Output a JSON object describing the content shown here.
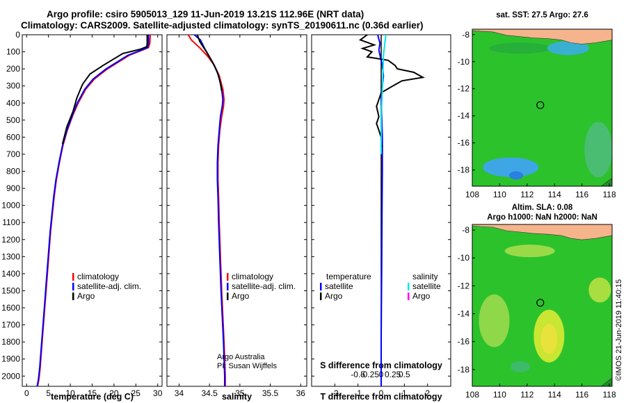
{
  "figure": {
    "title_line1": "Argo profile: csiro 5905013_129 11-Jun-2019 13.21S 112.96E (NRT data)",
    "title_line2": "Climatology: CARS2009. Satellite-adjusted climatology: synTS_20190611.nc (0.36d earlier)",
    "footer_vertical": "©IMOS 21-Jun-2019 11:40:15"
  },
  "colors": {
    "climatology": "#ff0000",
    "satellite": "#0000ff",
    "argo": "#000000",
    "sal_satellite": "#00e5ee",
    "sal_argo": "#ff00ff",
    "map_land": "#f5b48c",
    "map_ocean_green": "#2cc22c",
    "map_ocean_blue": "#3fa6e6",
    "map_ocean_yellow": "#c8e632"
  },
  "chart_data": [
    {
      "id": "temperature",
      "type": "line",
      "xlabel": "temperature (deg C)",
      "ylabel": "",
      "xlim": [
        -1,
        31
      ],
      "ylim": [
        2060,
        0
      ],
      "xticks": [
        0,
        5,
        10,
        15,
        20,
        25,
        30
      ],
      "yticks": [
        0,
        100,
        200,
        300,
        400,
        500,
        600,
        700,
        800,
        900,
        1000,
        1100,
        1200,
        1300,
        1400,
        1500,
        1600,
        1700,
        1800,
        1900,
        2000
      ],
      "legend": [
        "climatology",
        "satellite-adj. clim.",
        "Argo"
      ],
      "series": [
        {
          "name": "climatology",
          "color": "#ff0000",
          "x": [
            28.3,
            28.2,
            27.9,
            26.5,
            23.5,
            18.5,
            15.5,
            13.5,
            11.8,
            10.6,
            9.3,
            8.3,
            7.5,
            6.8,
            6.3,
            5.9,
            5.5,
            5.2,
            4.9,
            4.6,
            4.3,
            4.0,
            3.7,
            3.4,
            3.1,
            2.8,
            2.5
          ],
          "y": [
            0,
            50,
            75,
            90,
            120,
            200,
            260,
            320,
            400,
            470,
            560,
            650,
            750,
            850,
            950,
            1050,
            1150,
            1250,
            1350,
            1450,
            1550,
            1650,
            1750,
            1850,
            1950,
            2020,
            2060
          ]
        },
        {
          "name": "satellite-adj. clim.",
          "color": "#0000ff",
          "x": [
            27.9,
            27.9,
            27.7,
            26.3,
            23.2,
            18.2,
            15.2,
            13.3,
            11.6,
            10.5,
            9.2,
            8.2,
            7.4,
            6.7,
            6.2,
            5.8,
            5.4,
            5.1,
            4.8,
            4.5,
            4.2,
            3.9,
            3.6,
            3.3,
            3.0,
            2.7,
            2.4
          ],
          "y": [
            0,
            50,
            75,
            90,
            120,
            200,
            260,
            320,
            400,
            470,
            560,
            650,
            750,
            850,
            950,
            1050,
            1150,
            1250,
            1350,
            1450,
            1550,
            1650,
            1750,
            1850,
            1950,
            2020,
            2060
          ]
        },
        {
          "name": "Argo",
          "color": "#000000",
          "x": [
            27.6,
            27.6,
            27.5,
            26.0,
            22.0,
            17.5,
            14.5,
            12.8,
            11.5,
            10.6,
            9.2,
            8.2
          ],
          "y": [
            0,
            50,
            70,
            85,
            110,
            180,
            230,
            290,
            370,
            450,
            540,
            640
          ]
        }
      ]
    },
    {
      "id": "salinity",
      "type": "line",
      "xlabel": "salinity",
      "ylabel": "",
      "xlim": [
        33.8,
        36.1
      ],
      "ylim": [
        2060,
        0
      ],
      "xticks": [
        34,
        34.5,
        35,
        35.5,
        36
      ],
      "legend": [
        "climatology",
        "satellite-adj. clim.",
        "Argo"
      ],
      "annotation_line1": "Argo Australia",
      "annotation_line2": "PI: Susan Wijffels",
      "series": [
        {
          "name": "climatology",
          "color": "#ff0000",
          "x": [
            34.15,
            34.2,
            34.35,
            34.48,
            34.58,
            34.66,
            34.72,
            34.74,
            34.73,
            34.7,
            34.67,
            34.65,
            34.64,
            34.64,
            34.65,
            34.66,
            34.68,
            34.7,
            34.72,
            34.74,
            34.75,
            34.76,
            34.76
          ],
          "y": [
            0,
            30,
            80,
            130,
            180,
            240,
            320,
            380,
            420,
            480,
            560,
            650,
            750,
            850,
            950,
            1100,
            1300,
            1500,
            1650,
            1800,
            1900,
            2000,
            2060
          ]
        },
        {
          "name": "satellite-adj. clim.",
          "color": "#0000ff",
          "x": [
            34.25,
            34.35,
            34.42,
            34.5,
            34.58,
            34.65,
            34.7,
            34.72,
            34.71,
            34.68,
            34.66,
            34.64,
            34.63,
            34.63,
            34.64,
            34.65,
            34.67,
            34.69,
            34.71,
            34.73,
            34.74,
            34.75,
            34.75
          ],
          "y": [
            0,
            30,
            80,
            130,
            180,
            240,
            320,
            380,
            420,
            480,
            560,
            650,
            750,
            850,
            950,
            1100,
            1300,
            1500,
            1650,
            1800,
            1900,
            2000,
            2060
          ]
        },
        {
          "name": "Argo",
          "color": "#000000",
          "x": [
            34.3,
            34.34,
            34.45,
            34.55,
            34.63,
            34.68,
            34.7
          ],
          "y": [
            0,
            40,
            100,
            160,
            220,
            280,
            330
          ]
        }
      ]
    },
    {
      "id": "difference",
      "type": "line",
      "xlabel": "T difference from climatology",
      "xlabel2": "S difference from climatology",
      "xlim": [
        -3,
        3
      ],
      "ylim": [
        2060,
        0
      ],
      "xticks": [
        -2,
        -1,
        0,
        1,
        2
      ],
      "sticks": [
        -0.5,
        -0.25,
        0,
        0.25,
        0.5
      ],
      "stick_labels": [
        "-0.5",
        "-0.25",
        "0",
        "0.25",
        "0.5"
      ],
      "legend_temperature_title": "temperature",
      "legend_salinity_title": "salinity",
      "legend_items": [
        "satellite",
        "Argo"
      ],
      "series": [
        {
          "name": "T satellite",
          "color": "#0000ff",
          "x": [
            -0.15,
            -0.05,
            -0.1,
            -0.05,
            0.05,
            0.1,
            0.05,
            0.0,
            0.02,
            0.05,
            0.05,
            0.04,
            0.03,
            0.02,
            0.01,
            0.0,
            0.0,
            0.0
          ],
          "y": [
            0,
            50,
            90,
            120,
            180,
            240,
            300,
            360,
            450,
            600,
            800,
            1000,
            1200,
            1400,
            1600,
            1800,
            2000,
            2060
          ]
        },
        {
          "name": "T Argo",
          "color": "#000000",
          "x": [
            -0.6,
            -0.9,
            -0.3,
            -0.8,
            -0.4,
            -0.6,
            0.3,
            0.6,
            0.7,
            1.4,
            1.8,
            0.9,
            0.5,
            0.0,
            -0.1,
            -0.2,
            -0.1,
            -0.2,
            -0.1,
            0.0,
            0.0,
            0.05
          ],
          "y": [
            0,
            30,
            60,
            80,
            100,
            130,
            150,
            180,
            200,
            220,
            250,
            270,
            300,
            340,
            380,
            420,
            480,
            520,
            560,
            600,
            640,
            660
          ]
        },
        {
          "name": "S satellite",
          "color": "#00e5ee",
          "x": [
            0.2,
            0.15,
            0.1,
            0.08,
            0.06,
            0.04,
            0.02,
            0.01,
            0.01,
            0.0,
            0.0
          ],
          "y": [
            0,
            60,
            120,
            200,
            280,
            360,
            420,
            500,
            560,
            640,
            700
          ]
        }
      ]
    },
    {
      "id": "sst_map",
      "type": "heatmap",
      "title": "sat. SST: 27.5 Argo: 27.6",
      "xlim": [
        108,
        118.2
      ],
      "ylim": [
        -19.2,
        -7.6
      ],
      "xticks": [
        108,
        110,
        112,
        114,
        116,
        118
      ],
      "yticks": [
        -8,
        -10,
        -12,
        -14,
        -16,
        -18
      ],
      "marker": {
        "lon": 112.96,
        "lat": -13.21
      }
    },
    {
      "id": "sla_map",
      "type": "heatmap",
      "title_line1": "Altim. SLA: 0.08",
      "title_line2": "Argo h1000: NaN h2000: NaN",
      "xlim": [
        108,
        118.2
      ],
      "ylim": [
        -19.2,
        -7.6
      ],
      "xticks": [
        108,
        110,
        112,
        114,
        116,
        118
      ],
      "yticks": [
        -8,
        -10,
        -12,
        -14,
        -16,
        -18
      ],
      "marker": {
        "lon": 112.96,
        "lat": -13.21
      }
    }
  ]
}
